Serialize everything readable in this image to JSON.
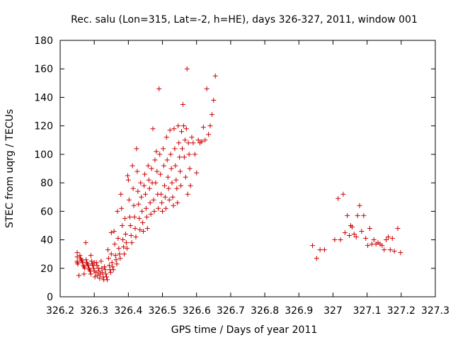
{
  "chart_data": {
    "type": "scatter",
    "title": "Rec. salu (Lon=315, Lat=-2, h=HE), days 326-327, 2011, window 001",
    "xlabel": "GPS time / Days of year 2011",
    "ylabel": "STEC from uqrg / TECUs",
    "xlim": [
      326.2,
      327.3
    ],
    "ylim": [
      0,
      180
    ],
    "x_ticks": [
      326.2,
      326.3,
      326.4,
      326.5,
      326.6,
      326.7,
      326.8,
      326.9,
      327.0,
      327.1,
      327.2,
      327.3
    ],
    "x_tick_labels": [
      "326.2",
      "326.3",
      "326.4",
      "326.5",
      "326.6",
      "326.7",
      "326.8",
      "326.9",
      "327",
      "327.1",
      "327.2",
      "327.3"
    ],
    "y_ticks": [
      0,
      20,
      40,
      60,
      80,
      100,
      120,
      140,
      160,
      180
    ],
    "y_tick_labels": [
      "0",
      "20",
      "40",
      "60",
      "80",
      "100",
      "120",
      "140",
      "160",
      "180"
    ],
    "grid": false,
    "marker": "+",
    "marker_color": "#cc0000",
    "series": [
      {
        "points": [
          [
            326.25,
            31
          ],
          [
            326.25,
            28
          ],
          [
            326.25,
            25
          ],
          [
            326.25,
            24
          ],
          [
            326.252,
            23
          ],
          [
            326.255,
            15
          ],
          [
            326.258,
            29
          ],
          [
            326.26,
            27
          ],
          [
            326.262,
            26
          ],
          [
            326.264,
            25
          ],
          [
            326.266,
            24
          ],
          [
            326.268,
            22
          ],
          [
            326.27,
            21
          ],
          [
            326.27,
            16
          ],
          [
            326.272,
            20
          ],
          [
            326.275,
            38
          ],
          [
            326.276,
            26
          ],
          [
            326.278,
            24
          ],
          [
            326.28,
            23
          ],
          [
            326.282,
            22
          ],
          [
            326.284,
            20
          ],
          [
            326.286,
            19
          ],
          [
            326.288,
            18
          ],
          [
            326.29,
            29
          ],
          [
            326.29,
            16
          ],
          [
            326.292,
            25
          ],
          [
            326.294,
            23
          ],
          [
            326.296,
            22
          ],
          [
            326.298,
            20
          ],
          [
            326.3,
            24
          ],
          [
            326.3,
            18
          ],
          [
            326.302,
            14
          ],
          [
            326.305,
            17
          ],
          [
            326.306,
            24
          ],
          [
            326.308,
            22
          ],
          [
            326.31,
            15
          ],
          [
            326.312,
            20
          ],
          [
            326.314,
            18
          ],
          [
            326.316,
            13
          ],
          [
            326.318,
            16
          ],
          [
            326.32,
            25
          ],
          [
            326.322,
            20
          ],
          [
            326.324,
            17
          ],
          [
            326.326,
            14
          ],
          [
            326.328,
            12
          ],
          [
            326.33,
            21
          ],
          [
            326.332,
            19
          ],
          [
            326.334,
            16
          ],
          [
            326.336,
            14
          ],
          [
            326.338,
            12
          ],
          [
            326.34,
            33
          ],
          [
            326.342,
            27
          ],
          [
            326.344,
            22
          ],
          [
            326.346,
            19
          ],
          [
            326.348,
            17
          ],
          [
            326.35,
            45
          ],
          [
            326.35,
            30
          ],
          [
            326.352,
            24
          ],
          [
            326.354,
            21
          ],
          [
            326.356,
            19
          ],
          [
            326.358,
            46
          ],
          [
            326.36,
            37
          ],
          [
            326.362,
            29
          ],
          [
            326.364,
            26
          ],
          [
            326.366,
            23
          ],
          [
            326.368,
            60
          ],
          [
            326.37,
            41
          ],
          [
            326.372,
            34
          ],
          [
            326.374,
            30
          ],
          [
            326.376,
            27
          ],
          [
            326.378,
            72
          ],
          [
            326.38,
            62
          ],
          [
            326.382,
            50
          ],
          [
            326.384,
            40
          ],
          [
            326.386,
            35
          ],
          [
            326.388,
            30
          ],
          [
            326.39,
            55
          ],
          [
            326.392,
            44
          ],
          [
            326.394,
            38
          ],
          [
            326.396,
            34
          ],
          [
            326.398,
            85
          ],
          [
            326.4,
            82
          ],
          [
            326.402,
            68
          ],
          [
            326.404,
            56
          ],
          [
            326.406,
            50
          ],
          [
            326.408,
            43
          ],
          [
            326.41,
            38
          ],
          [
            326.412,
            92
          ],
          [
            326.414,
            76
          ],
          [
            326.416,
            64
          ],
          [
            326.418,
            56
          ],
          [
            326.42,
            48
          ],
          [
            326.422,
            42
          ],
          [
            326.424,
            104
          ],
          [
            326.426,
            88
          ],
          [
            326.428,
            74
          ],
          [
            326.43,
            65
          ],
          [
            326.432,
            55
          ],
          [
            326.434,
            47
          ],
          [
            326.436,
            80
          ],
          [
            326.438,
            70
          ],
          [
            326.44,
            60
          ],
          [
            326.442,
            52
          ],
          [
            326.444,
            46
          ],
          [
            326.446,
            78
          ],
          [
            326.448,
            86
          ],
          [
            326.45,
            72
          ],
          [
            326.452,
            62
          ],
          [
            326.454,
            56
          ],
          [
            326.456,
            48
          ],
          [
            326.458,
            92
          ],
          [
            326.46,
            82
          ],
          [
            326.462,
            76
          ],
          [
            326.464,
            66
          ],
          [
            326.466,
            58
          ],
          [
            326.468,
            90
          ],
          [
            326.47,
            80
          ],
          [
            326.472,
            118
          ],
          [
            326.474,
            68
          ],
          [
            326.476,
            60
          ],
          [
            326.478,
            96
          ],
          [
            326.48,
            80
          ],
          [
            326.482,
            102
          ],
          [
            326.484,
            88
          ],
          [
            326.486,
            72
          ],
          [
            326.488,
            62
          ],
          [
            326.49,
            146
          ],
          [
            326.492,
            100
          ],
          [
            326.494,
            86
          ],
          [
            326.496,
            72
          ],
          [
            326.498,
            66
          ],
          [
            326.5,
            60
          ],
          [
            326.502,
            104
          ],
          [
            326.504,
            92
          ],
          [
            326.506,
            78
          ],
          [
            326.508,
            70
          ],
          [
            326.51,
            62
          ],
          [
            326.512,
            112
          ],
          [
            326.514,
            96
          ],
          [
            326.516,
            84
          ],
          [
            326.518,
            76
          ],
          [
            326.52,
            68
          ],
          [
            326.522,
            117
          ],
          [
            326.524,
            100
          ],
          [
            326.526,
            90
          ],
          [
            326.528,
            80
          ],
          [
            326.53,
            70
          ],
          [
            326.532,
            64
          ],
          [
            326.534,
            118
          ],
          [
            326.536,
            104
          ],
          [
            326.538,
            92
          ],
          [
            326.54,
            82
          ],
          [
            326.542,
            76
          ],
          [
            326.544,
            66
          ],
          [
            326.546,
            120
          ],
          [
            326.548,
            108
          ],
          [
            326.55,
            98
          ],
          [
            326.552,
            88
          ],
          [
            326.554,
            78
          ],
          [
            326.556,
            116
          ],
          [
            326.558,
            104
          ],
          [
            326.56,
            135
          ],
          [
            326.562,
            120
          ],
          [
            326.564,
            98
          ],
          [
            326.566,
            110
          ],
          [
            326.568,
            84
          ],
          [
            326.57,
            118
          ],
          [
            326.572,
            160
          ],
          [
            326.574,
            72
          ],
          [
            326.576,
            108
          ],
          [
            326.578,
            100
          ],
          [
            326.58,
            90
          ],
          [
            326.582,
            78
          ],
          [
            326.586,
            112
          ],
          [
            326.59,
            108
          ],
          [
            326.595,
            100
          ],
          [
            326.6,
            87
          ],
          [
            326.605,
            110
          ],
          [
            326.61,
            108
          ],
          [
            326.615,
            109
          ],
          [
            326.62,
            119
          ],
          [
            326.625,
            110
          ],
          [
            326.63,
            146
          ],
          [
            326.635,
            114
          ],
          [
            326.64,
            120
          ],
          [
            326.645,
            128
          ],
          [
            326.65,
            138
          ],
          [
            326.655,
            155
          ]
        ]
      },
      {
        "points": [
          [
            326.94,
            36
          ],
          [
            326.952,
            27
          ],
          [
            326.962,
            33
          ],
          [
            326.975,
            33
          ],
          [
            327.005,
            40
          ],
          [
            327.015,
            69
          ],
          [
            327.022,
            40
          ],
          [
            327.03,
            72
          ],
          [
            327.035,
            45
          ],
          [
            327.042,
            57
          ],
          [
            327.048,
            43
          ],
          [
            327.052,
            50
          ],
          [
            327.056,
            49
          ],
          [
            327.062,
            44
          ],
          [
            327.068,
            42
          ],
          [
            327.072,
            57
          ],
          [
            327.078,
            64
          ],
          [
            327.084,
            46
          ],
          [
            327.09,
            57
          ],
          [
            327.096,
            41
          ],
          [
            327.102,
            36
          ],
          [
            327.108,
            48
          ],
          [
            327.114,
            37
          ],
          [
            327.12,
            40
          ],
          [
            327.126,
            37
          ],
          [
            327.132,
            38
          ],
          [
            327.138,
            37
          ],
          [
            327.144,
            36
          ],
          [
            327.15,
            33
          ],
          [
            327.156,
            40
          ],
          [
            327.162,
            42
          ],
          [
            327.168,
            33
          ],
          [
            327.174,
            41
          ],
          [
            327.18,
            32
          ],
          [
            327.19,
            48
          ],
          [
            327.198,
            31
          ]
        ]
      }
    ]
  }
}
